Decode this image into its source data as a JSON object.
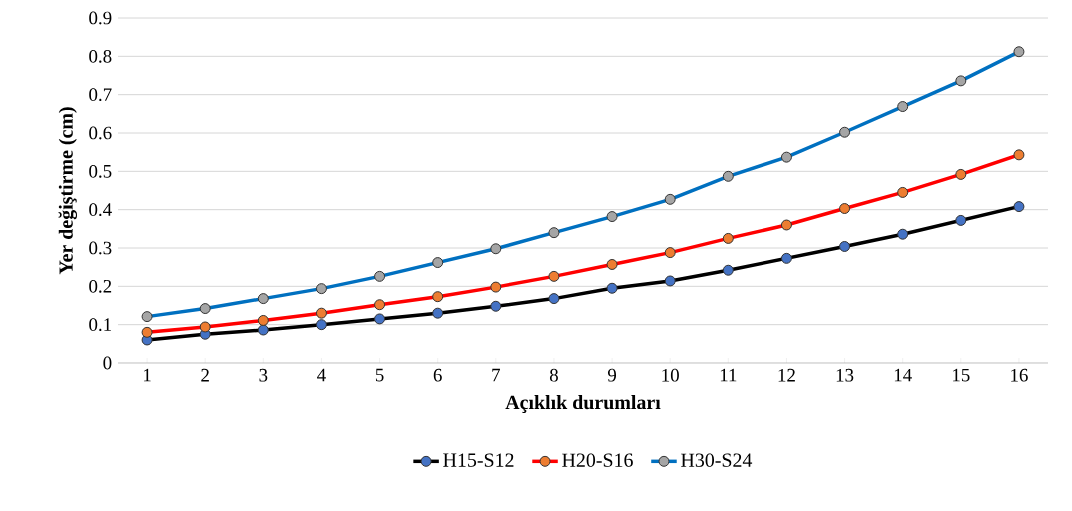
{
  "chart_data": {
    "type": "line",
    "xlabel": "Açıklık durumları",
    "ylabel": "Yer değiştirme (cm)",
    "categories": [
      "1",
      "2",
      "3",
      "4",
      "5",
      "6",
      "7",
      "8",
      "9",
      "10",
      "11",
      "12",
      "13",
      "14",
      "15",
      "16"
    ],
    "series": [
      {
        "name": "H15-S12",
        "color": "#000000",
        "values": [
          0.06,
          0.075,
          0.086,
          0.1,
          0.115,
          0.13,
          0.148,
          0.168,
          0.195,
          0.214,
          0.242,
          0.273,
          0.304,
          0.336,
          0.372,
          0.408
        ]
      },
      {
        "name": "H20-S16",
        "color": "#ff0000",
        "values": [
          0.08,
          0.094,
          0.111,
          0.13,
          0.152,
          0.173,
          0.198,
          0.226,
          0.257,
          0.288,
          0.325,
          0.36,
          0.403,
          0.445,
          0.492,
          0.543
        ]
      },
      {
        "name": "H30-S24",
        "color": "#0070c0",
        "values": [
          0.121,
          0.142,
          0.168,
          0.194,
          0.226,
          0.262,
          0.298,
          0.34,
          0.382,
          0.427,
          0.487,
          0.537,
          0.602,
          0.669,
          0.736,
          0.812
        ]
      }
    ],
    "ylim": [
      0,
      0.9
    ],
    "yticks": [
      0,
      0.1,
      0.2,
      0.3,
      0.4,
      0.5,
      0.6,
      0.7,
      0.8,
      0.9
    ],
    "grid": "y",
    "legend": "bottom",
    "marker": "circle",
    "line_style": "solid"
  }
}
